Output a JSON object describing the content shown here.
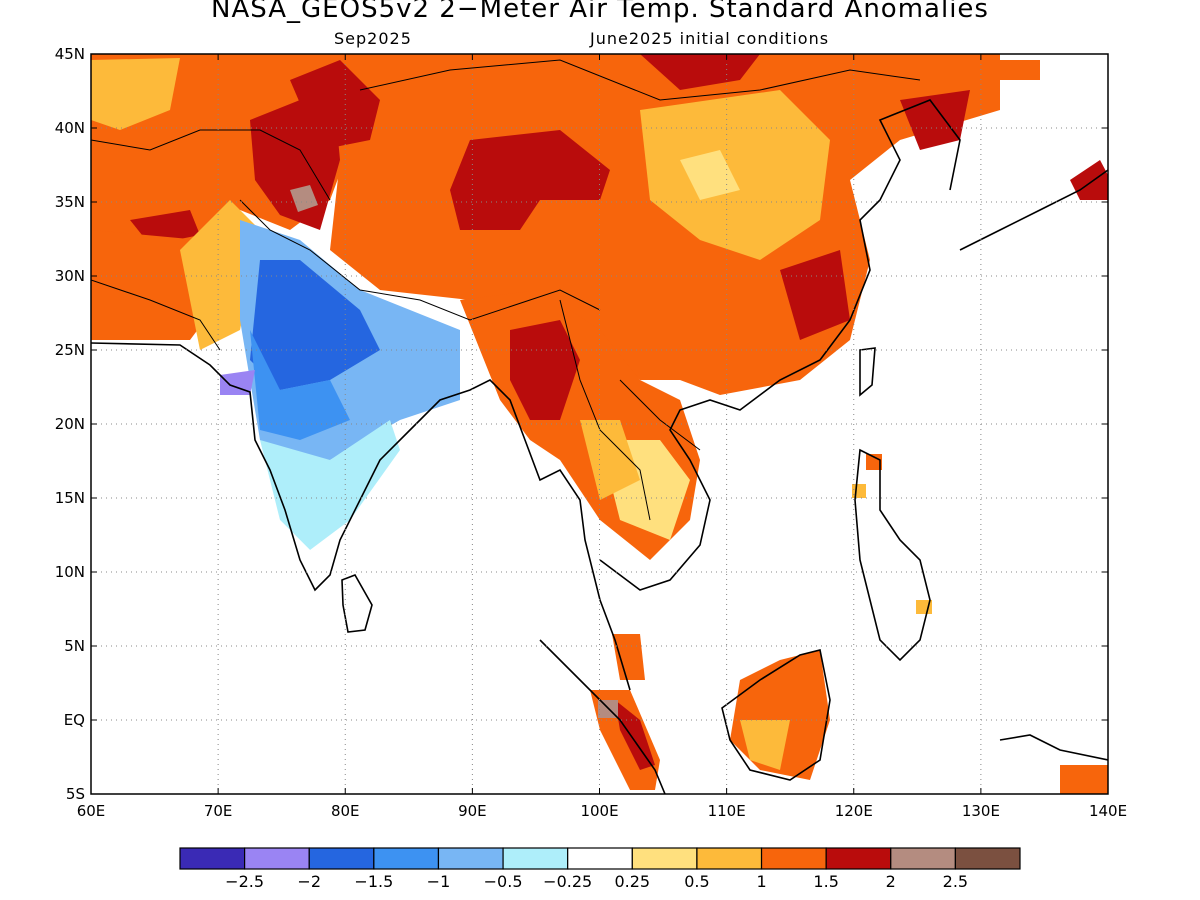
{
  "title": "NASA_GEOS5v2 2−Meter Air Temp. Standard Anomalies",
  "subtitle_left": "Sep2025",
  "subtitle_right": "June2025 initial conditions",
  "map": {
    "lon_range": [
      60,
      140
    ],
    "lat_range": [
      -5,
      45
    ],
    "x_ticks": [
      "60E",
      "70E",
      "80E",
      "90E",
      "100E",
      "110E",
      "120E",
      "130E",
      "140E"
    ],
    "y_ticks": [
      "5S",
      "EQ",
      "5N",
      "10N",
      "15N",
      "20N",
      "25N",
      "30N",
      "35N",
      "40N",
      "45N"
    ],
    "gridlines": true
  },
  "colorbar": {
    "colors": [
      "#3a2ab5",
      "#9a84f3",
      "#2566e0",
      "#3d92f2",
      "#78b6f4",
      "#aeeefa",
      "#ffffff",
      "#ffe07e",
      "#fdba3a",
      "#f7650c",
      "#b90c0c",
      "#b48c80",
      "#7b5040"
    ],
    "labels": [
      "−2.5",
      "−2",
      "−1.5",
      "−1",
      "−0.5",
      "−0.25",
      "0.25",
      "0.5",
      "1",
      "1.5",
      "2",
      "2.5"
    ]
  },
  "regions": [
    {
      "name": "central-asia-warm",
      "level": 1.5
    },
    {
      "name": "tibetan-plateau-warm",
      "level": 1.5
    },
    {
      "name": "tibet-hotspot",
      "level": 2
    },
    {
      "name": "kashmir-hotspot",
      "level": 2
    },
    {
      "name": "mongolia-hotspot",
      "level": 2
    },
    {
      "name": "china-warm",
      "level": 1
    },
    {
      "name": "southeast-china-warm",
      "level": 1.5
    },
    {
      "name": "north-india-cool",
      "level": -1
    },
    {
      "name": "central-india-cool",
      "level": -1.5
    },
    {
      "name": "south-india-cool",
      "level": -0.25
    },
    {
      "name": "myanmar-warm",
      "level": 1.5
    },
    {
      "name": "indochina-warm",
      "level": 0.5
    },
    {
      "name": "borneo-warm",
      "level": 1
    },
    {
      "name": "sumatra-warm",
      "level": 1.5
    }
  ]
}
